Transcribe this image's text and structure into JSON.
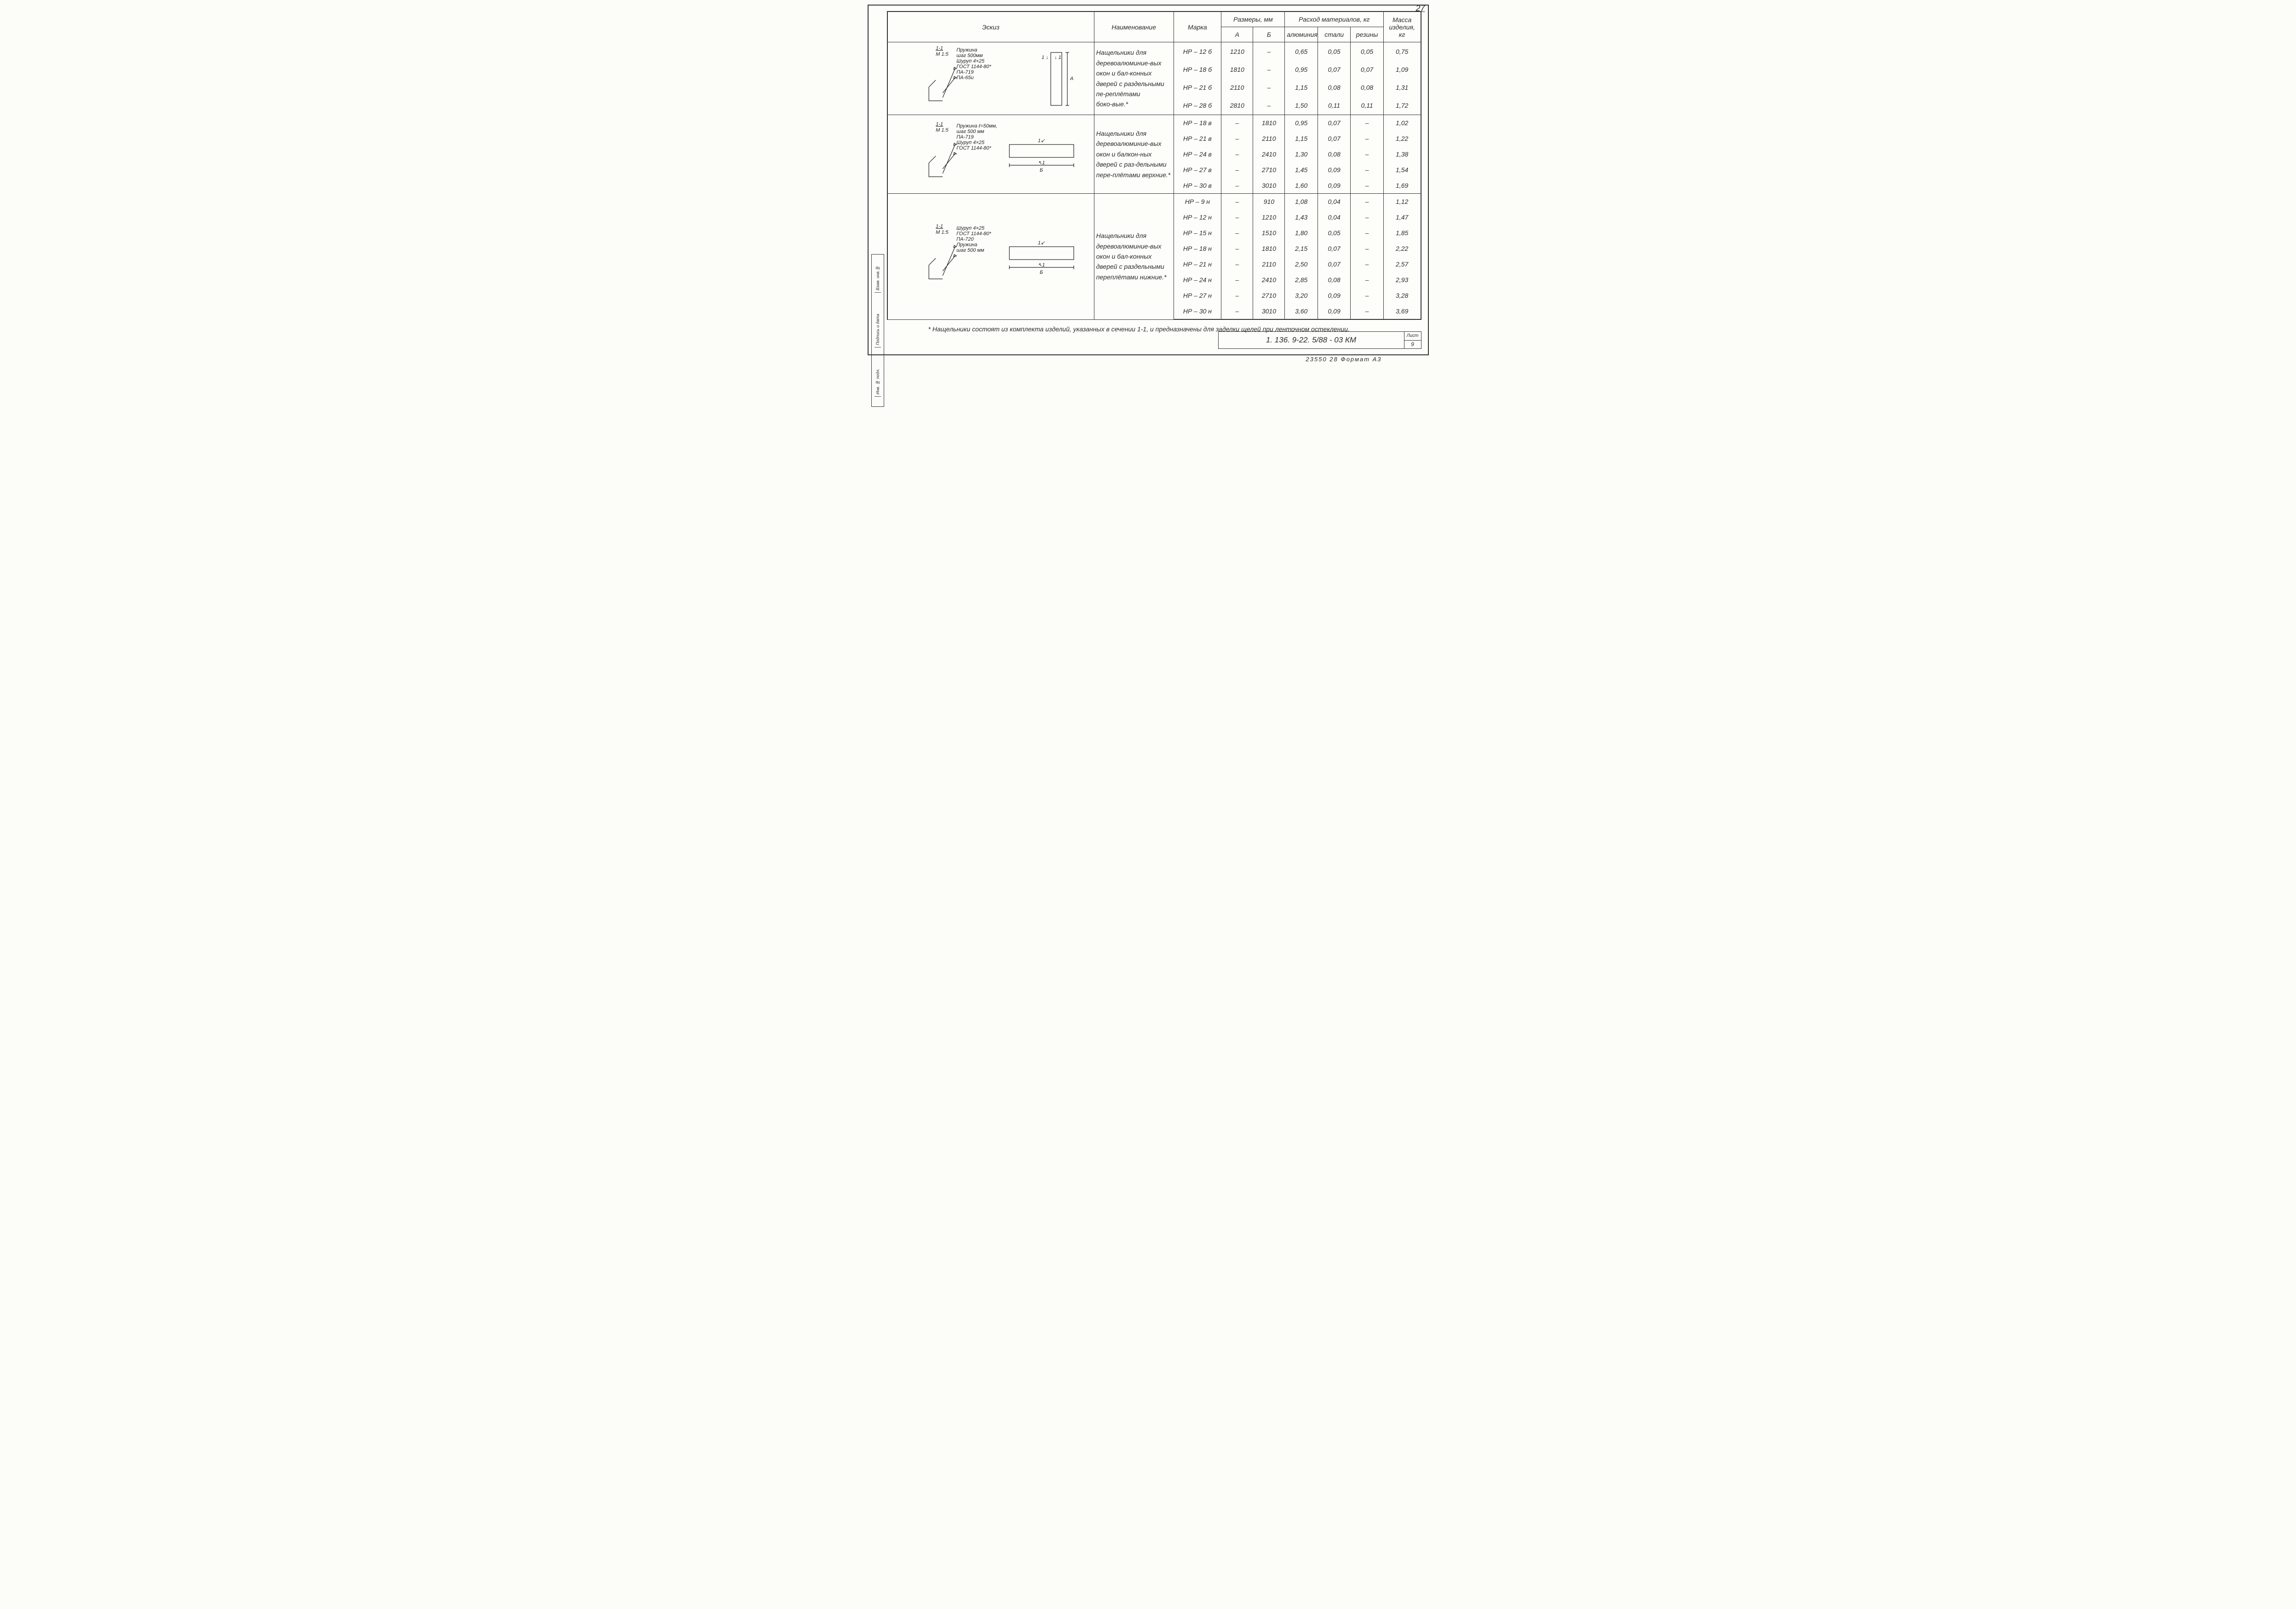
{
  "page_number": "27",
  "headers": {
    "sketch": "Эскиз",
    "name": "Наименование",
    "mark": "Марка",
    "dims_group": "Размеры, мм",
    "dim_a": "А",
    "dim_b": "Б",
    "mat_group": "Расход материалов, кг",
    "mat_al": "алюминия",
    "mat_st": "стали",
    "mat_ru": "резины",
    "mass": "Масса изделия, кг"
  },
  "groups": [
    {
      "sketch": {
        "title": "1‑1",
        "scale": "М 1:5",
        "labels": [
          "Пружина",
          "шаг 500мм",
          "Шуруп 4×25",
          "ГОСТ 1144‑80*",
          "ПА‑719",
          "ПА‑65и"
        ],
        "dim_letter": "А"
      },
      "description": "Нащельники для деревоалюминие‑вых окон и бал‑конных дверей с раздельными пе‑реплётами боко‑вые.*",
      "rows": [
        {
          "mark": "НР – 12 б",
          "A": "1210",
          "B": "–",
          "al": "0,65",
          "st": "0,05",
          "ru": "0,05",
          "mass": "0,75"
        },
        {
          "mark": "НР – 18 б",
          "A": "1810",
          "B": "–",
          "al": "0,95",
          "st": "0,07",
          "ru": "0,07",
          "mass": "1,09"
        },
        {
          "mark": "НР – 21 б",
          "A": "2110",
          "B": "–",
          "al": "1,15",
          "st": "0,08",
          "ru": "0,08",
          "mass": "1,31"
        },
        {
          "mark": "НР – 28 б",
          "A": "2810",
          "B": "–",
          "al": "1,50",
          "st": "0,11",
          "ru": "0,11",
          "mass": "1,72"
        }
      ]
    },
    {
      "sketch": {
        "title": "1‑1",
        "scale": "М 1:5",
        "labels": [
          "Пружина ℓ=50мм,",
          "шаг 500 мм",
          "ПА‑719",
          "Шуруп 4×25",
          "ГОСТ 1144‑80*"
        ],
        "dim_letter": "Б"
      },
      "description": "Нащельники для деревоалюминие‑вых окон и балкон‑ных дверей с раз‑дельными пере‑плётами верхние.*",
      "rows": [
        {
          "mark": "НР – 18 в",
          "A": "–",
          "B": "1810",
          "al": "0,95",
          "st": "0,07",
          "ru": "–",
          "mass": "1,02"
        },
        {
          "mark": "НР – 21 в",
          "A": "–",
          "B": "2110",
          "al": "1,15",
          "st": "0,07",
          "ru": "–",
          "mass": "1,22"
        },
        {
          "mark": "НР – 24 в",
          "A": "–",
          "B": "2410",
          "al": "1,30",
          "st": "0,08",
          "ru": "–",
          "mass": "1,38"
        },
        {
          "mark": "НР – 27 в",
          "A": "–",
          "B": "2710",
          "al": "1,45",
          "st": "0,09",
          "ru": "–",
          "mass": "1,54"
        },
        {
          "mark": "НР – 30 в",
          "A": "–",
          "B": "3010",
          "al": "1,60",
          "st": "0,09",
          "ru": "–",
          "mass": "1,69"
        }
      ]
    },
    {
      "sketch": {
        "title": "1‑1",
        "scale": "М 1:5",
        "labels": [
          "Шуруп 4×25",
          "ГОСТ 1144‑80*",
          "ПА‑720",
          "Пружина",
          "шаг 500 мм"
        ],
        "dim_letter": "Б"
      },
      "description": "Нащельники для деревоалюминие‑вых окон и бал‑конных дверей с раздельными переплётами нижние.*",
      "rows": [
        {
          "mark": "НР – 9 н",
          "A": "–",
          "B": "910",
          "al": "1,08",
          "st": "0,04",
          "ru": "–",
          "mass": "1,12"
        },
        {
          "mark": "НР – 12 н",
          "A": "–",
          "B": "1210",
          "al": "1,43",
          "st": "0,04",
          "ru": "–",
          "mass": "1,47"
        },
        {
          "mark": "НР – 15 н",
          "A": "–",
          "B": "1510",
          "al": "1,80",
          "st": "0,05",
          "ru": "–",
          "mass": "1,85"
        },
        {
          "mark": "НР – 18 н",
          "A": "–",
          "B": "1810",
          "al": "2,15",
          "st": "0,07",
          "ru": "–",
          "mass": "2,22"
        },
        {
          "mark": "НР – 21 н",
          "A": "–",
          "B": "2110",
          "al": "2,50",
          "st": "0,07",
          "ru": "–",
          "mass": "2,57"
        },
        {
          "mark": "НР – 24 н",
          "A": "–",
          "B": "2410",
          "al": "2,85",
          "st": "0,08",
          "ru": "–",
          "mass": "2,93"
        },
        {
          "mark": "НР – 27 н",
          "A": "–",
          "B": "2710",
          "al": "3,20",
          "st": "0,09",
          "ru": "–",
          "mass": "3,28"
        },
        {
          "mark": "НР – 30 н",
          "A": "–",
          "B": "3010",
          "al": "3,60",
          "st": "0,09",
          "ru": "–",
          "mass": "3,69"
        }
      ]
    }
  ],
  "footnote": "* Нащельники состоят из комплекта изделий, указанных в сечении 1‑1, и предназначены для заделки щелей при ленточном остеклении.",
  "title_block": {
    "code": "1. 136. 9‑22. 5/88 ‑ 03 КМ",
    "sheet_label": "Лист",
    "sheet_no": "9"
  },
  "bottom_meta": "23550    28        Формат  А3",
  "side_strip": [
    "Взам. инв.№",
    "Подпись и дата",
    "Инв. № подл."
  ]
}
